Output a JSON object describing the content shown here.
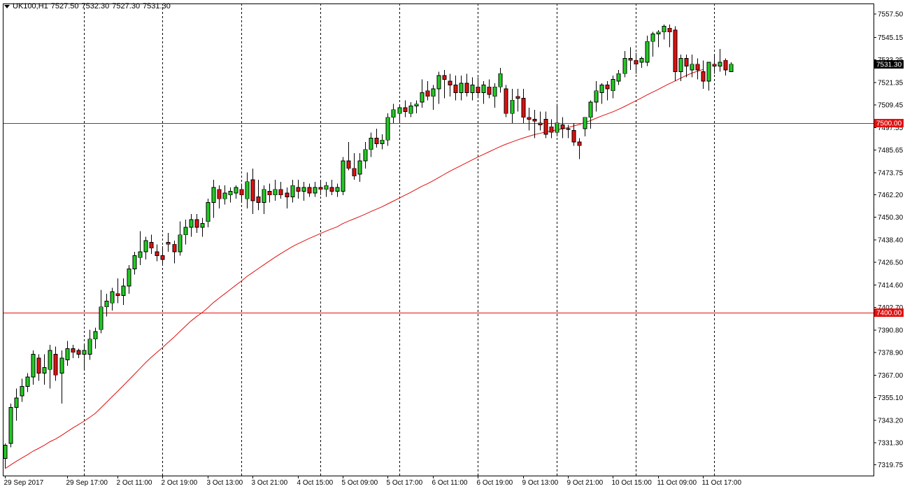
{
  "header": {
    "symbol": "UK100,H1",
    "open": "7527.50",
    "high": "7532.30",
    "low": "7527.30",
    "close": "7531.30",
    "menu_icon": "dropdown-triangle-icon"
  },
  "colors": {
    "bull_candle": "#22cc22",
    "bear_candle": "#e01010",
    "moving_average": "#e01010",
    "horizontal_level": "#e01010",
    "price_tag_bg": "#e01010",
    "current_price_bg": "#000000",
    "grid_vertical": "#000000",
    "axis": "#000000"
  },
  "current_price_label": "7531.30",
  "chart_data": {
    "type": "candlestick",
    "title": "",
    "xlabel": "",
    "ylabel": "",
    "ylim": [
      7314,
      7563
    ],
    "y_ticks": [
      "7557.50",
      "7545.15",
      "7533.25",
      "7521.35",
      "7509.45",
      "7497.55",
      "7485.65",
      "7473.75",
      "7462.20",
      "7450.30",
      "7438.40",
      "7426.50",
      "7414.60",
      "7402.70",
      "7390.80",
      "7378.90",
      "7367.00",
      "7355.10",
      "7343.20",
      "7331.30",
      "7319.75"
    ],
    "y_tick_values": [
      7557.5,
      7545.15,
      7533.25,
      7521.35,
      7509.45,
      7497.55,
      7485.65,
      7473.75,
      7462.2,
      7450.3,
      7438.4,
      7426.5,
      7414.6,
      7402.7,
      7390.8,
      7378.9,
      7367.0,
      7355.1,
      7343.2,
      7331.3,
      7319.75
    ],
    "x_ticks": [
      {
        "label": "29 Sep 2017",
        "bar": 0
      },
      {
        "label": "29 Sep 17:00",
        "bar": 11
      },
      {
        "label": "2 Oct 11:00",
        "bar": 20
      },
      {
        "label": "2 Oct 19:00",
        "bar": 28
      },
      {
        "label": "3 Oct 13:00",
        "bar": 36
      },
      {
        "label": "3 Oct 21:00",
        "bar": 44
      },
      {
        "label": "4 Oct 15:00",
        "bar": 52
      },
      {
        "label": "5 Oct 09:00",
        "bar": 60
      },
      {
        "label": "5 Oct 17:00",
        "bar": 68
      },
      {
        "label": "6 Oct 11:00",
        "bar": 76
      },
      {
        "label": "6 Oct 19:00",
        "bar": 84
      },
      {
        "label": "9 Oct 13:00",
        "bar": 92
      },
      {
        "label": "9 Oct 21:00",
        "bar": 100
      },
      {
        "label": "10 Oct 15:00",
        "bar": 108
      },
      {
        "label": "11 Oct 09:00",
        "bar": 116
      },
      {
        "label": "11 Oct 17:00",
        "bar": 124
      }
    ],
    "vertical_grid_bars": [
      14,
      28,
      42,
      56,
      70,
      84,
      98,
      112,
      126
    ],
    "horizontal_levels": [
      {
        "value": 7500.0,
        "label": "7500.00"
      },
      {
        "value": 7400.0,
        "label": "7400.00"
      }
    ],
    "series": [
      {
        "ohlc": [
          [
            7323,
            7331,
            7318,
            7330
          ],
          [
            7331,
            7352,
            7329,
            7350
          ],
          [
            7350,
            7360,
            7343,
            7355
          ],
          [
            7356,
            7365,
            7353,
            7361
          ],
          [
            7361,
            7368,
            7358,
            7366
          ],
          [
            7366,
            7380,
            7362,
            7378
          ],
          [
            7376,
            7378,
            7364,
            7368
          ],
          [
            7368,
            7378,
            7362,
            7371
          ],
          [
            7370,
            7383,
            7360,
            7380
          ],
          [
            7378,
            7382,
            7364,
            7367
          ],
          [
            7368,
            7380,
            7352,
            7376
          ],
          [
            7375,
            7385,
            7372,
            7381
          ],
          [
            7381,
            7383,
            7376,
            7379
          ],
          [
            7380,
            7381,
            7376,
            7378
          ],
          [
            7378,
            7383,
            7370,
            7380
          ],
          [
            7378,
            7391,
            7375,
            7386
          ],
          [
            7386,
            7392,
            7381,
            7390
          ],
          [
            7391,
            7412,
            7389,
            7403
          ],
          [
            7403,
            7410,
            7398,
            7406
          ],
          [
            7405,
            7413,
            7401,
            7411
          ],
          [
            7410,
            7418,
            7405,
            7409
          ],
          [
            7409,
            7418,
            7404,
            7414
          ],
          [
            7414,
            7425,
            7410,
            7423
          ],
          [
            7423,
            7432,
            7420,
            7430
          ],
          [
            7429,
            7443,
            7425,
            7432
          ],
          [
            7432,
            7440,
            7428,
            7438
          ],
          [
            7437,
            7441,
            7431,
            7434
          ],
          [
            7432,
            7436,
            7427,
            7430
          ],
          [
            7430,
            7435,
            7425,
            7428
          ],
          [
            7437,
            7442,
            7432,
            7436
          ],
          [
            7436,
            7438,
            7426,
            7432
          ],
          [
            7432,
            7448,
            7430,
            7441
          ],
          [
            7441,
            7449,
            7436,
            7445
          ],
          [
            7445,
            7452,
            7440,
            7449
          ],
          [
            7449,
            7452,
            7442,
            7445
          ],
          [
            7445,
            7450,
            7440,
            7447
          ],
          [
            7448,
            7460,
            7445,
            7458
          ],
          [
            7458,
            7470,
            7450,
            7466
          ],
          [
            7465,
            7467,
            7455,
            7460
          ],
          [
            7460,
            7467,
            7457,
            7463
          ],
          [
            7462,
            7466,
            7458,
            7464
          ],
          [
            7463,
            7467,
            7460,
            7466
          ],
          [
            7465,
            7468,
            7459,
            7462
          ],
          [
            7460,
            7474,
            7455,
            7469
          ],
          [
            7470,
            7476,
            7452,
            7459
          ],
          [
            7461,
            7470,
            7454,
            7458
          ],
          [
            7458,
            7467,
            7452,
            7465
          ],
          [
            7464,
            7468,
            7458,
            7462
          ],
          [
            7462,
            7470,
            7459,
            7465
          ],
          [
            7465,
            7469,
            7460,
            7462
          ],
          [
            7463,
            7466,
            7455,
            7461
          ],
          [
            7461,
            7470,
            7458,
            7467
          ],
          [
            7466,
            7470,
            7460,
            7464
          ],
          [
            7464,
            7469,
            7459,
            7466
          ],
          [
            7466,
            7468,
            7461,
            7463
          ],
          [
            7463,
            7469,
            7461,
            7466
          ],
          [
            7466,
            7470,
            7462,
            7465
          ],
          [
            7465,
            7469,
            7461,
            7467
          ],
          [
            7466,
            7470,
            7462,
            7464
          ],
          [
            7464,
            7468,
            7461,
            7466
          ],
          [
            7464,
            7482,
            7462,
            7480
          ],
          [
            7480,
            7490,
            7475,
            7476
          ],
          [
            7476,
            7484,
            7470,
            7472
          ],
          [
            7473,
            7484,
            7469,
            7480
          ],
          [
            7480,
            7490,
            7476,
            7486
          ],
          [
            7486,
            7495,
            7482,
            7492
          ],
          [
            7492,
            7497,
            7487,
            7489
          ],
          [
            7489,
            7494,
            7486,
            7491
          ],
          [
            7491,
            7505,
            7488,
            7503
          ],
          [
            7503,
            7510,
            7500,
            7507
          ],
          [
            7505,
            7509,
            7500,
            7508
          ],
          [
            7508,
            7512,
            7503,
            7506
          ],
          [
            7505,
            7511,
            7503,
            7509
          ],
          [
            7509,
            7512,
            7505,
            7510
          ],
          [
            7511,
            7523,
            7508,
            7516
          ],
          [
            7517,
            7522,
            7512,
            7514
          ],
          [
            7514,
            7520,
            7507,
            7518
          ],
          [
            7518,
            7527,
            7510,
            7525
          ],
          [
            7525,
            7528,
            7513,
            7523
          ],
          [
            7522,
            7526,
            7514,
            7520
          ],
          [
            7520,
            7525,
            7512,
            7516
          ],
          [
            7516,
            7525,
            7512,
            7521
          ],
          [
            7521,
            7526,
            7514,
            7516
          ],
          [
            7516,
            7524,
            7512,
            7520
          ],
          [
            7519,
            7524,
            7513,
            7516
          ],
          [
            7516,
            7522,
            7510,
            7520
          ],
          [
            7519,
            7523,
            7513,
            7515
          ],
          [
            7514,
            7521,
            7508,
            7519
          ],
          [
            7519,
            7529,
            7516,
            7526
          ],
          [
            7518,
            7520,
            7503,
            7505
          ],
          [
            7505,
            7518,
            7500,
            7512
          ],
          [
            7514,
            7518,
            7506,
            7513
          ],
          [
            7513,
            7518,
            7500,
            7503
          ],
          [
            7503,
            7508,
            7496,
            7502
          ],
          [
            7502,
            7507,
            7492,
            7501
          ],
          [
            7500,
            7506,
            7496,
            7499
          ],
          [
            7502,
            7506,
            7492,
            7494
          ],
          [
            7498,
            7502,
            7492,
            7495
          ],
          [
            7495,
            7510,
            7493,
            7500
          ],
          [
            7499,
            7503,
            7492,
            7497
          ],
          [
            7497,
            7499,
            7492,
            7497
          ],
          [
            7496,
            7500,
            7488,
            7490
          ],
          [
            7490,
            7492,
            7481,
            7488
          ],
          [
            7497,
            7503,
            7493,
            7503
          ],
          [
            7503,
            7512,
            7497,
            7511
          ],
          [
            7511,
            7522,
            7506,
            7517
          ],
          [
            7516,
            7521,
            7510,
            7520
          ],
          [
            7520,
            7522,
            7512,
            7518
          ],
          [
            7517,
            7525,
            7513,
            7523
          ],
          [
            7522,
            7528,
            7520,
            7526
          ],
          [
            7526,
            7538,
            7524,
            7534
          ],
          [
            7534,
            7540,
            7528,
            7533
          ],
          [
            7533,
            7537,
            7526,
            7531
          ],
          [
            7532,
            7535,
            7529,
            7534
          ],
          [
            7532,
            7546,
            7530,
            7543
          ],
          [
            7543,
            7548,
            7535,
            7547
          ],
          [
            7547,
            7549,
            7540,
            7548
          ],
          [
            7548,
            7552,
            7544,
            7551
          ],
          [
            7550,
            7552,
            7540,
            7548
          ],
          [
            7549,
            7551,
            7522,
            7527
          ],
          [
            7527,
            7536,
            7522,
            7534
          ],
          [
            7534,
            7536,
            7524,
            7530
          ],
          [
            7528,
            7536,
            7524,
            7531
          ],
          [
            7531,
            7534,
            7523,
            7528
          ],
          [
            7527,
            7533,
            7518,
            7522
          ],
          [
            7522,
            7531,
            7517,
            7532
          ],
          [
            7531,
            7536,
            7526,
            7530
          ],
          [
            7530,
            7539,
            7527,
            7532
          ],
          [
            7533,
            7534,
            7525,
            7528
          ],
          [
            7527,
            7532,
            7527,
            7531
          ]
        ]
      },
      {
        "name": "",
        "type": "line",
        "values": [
          7317.6,
          7319.6,
          7321.5,
          7323.3,
          7325.0,
          7326.9,
          7328.4,
          7330.0,
          7331.9,
          7333.3,
          7335.1,
          7337.1,
          7339.0,
          7340.8,
          7342.6,
          7344.6,
          7346.7,
          7349.6,
          7352.5,
          7355.5,
          7358.4,
          7361.4,
          7364.4,
          7367.5,
          7370.5,
          7373.6,
          7376.4,
          7379.0,
          7381.5,
          7384.3,
          7386.9,
          7389.8,
          7392.6,
          7395.4,
          7397.8,
          7399.9,
          7402.4,
          7405.2,
          7407.5,
          7409.8,
          7412.1,
          7414.4,
          7416.6,
          7419.1,
          7421.1,
          7423.2,
          7425.2,
          7427.2,
          7429.2,
          7431.1,
          7432.9,
          7434.7,
          7436.2,
          7437.6,
          7439.0,
          7440.3,
          7441.6,
          7442.9,
          7444.1,
          7445.2,
          7446.9,
          7448.2,
          7449.4,
          7450.6,
          7451.9,
          7453.3,
          7454.5,
          7455.8,
          7457.3,
          7458.8,
          7460.3,
          7461.8,
          7463.3,
          7464.9,
          7466.5,
          7467.9,
          7469.4,
          7471.1,
          7472.8,
          7474.5,
          7476.0,
          7477.5,
          7479.0,
          7480.5,
          7482.0,
          7483.4,
          7484.8,
          7486.2,
          7487.6,
          7488.8,
          7489.9,
          7491.0,
          7492.0,
          7492.9,
          7493.8,
          7494.5,
          7495.2,
          7495.8,
          7496.3,
          7496.9,
          7497.6,
          7498.4,
          7499.2,
          7500.2,
          7501.2,
          7502.5,
          7503.7,
          7504.8,
          7505.9,
          7507.2,
          7508.6,
          7510.1,
          7511.6,
          7513.1,
          7514.7,
          7516.2,
          7517.6,
          7519.2,
          7520.7,
          7522.1,
          7523.6,
          7525.0,
          7526.3,
          7527.2,
          7528.2
        ]
      }
    ]
  }
}
